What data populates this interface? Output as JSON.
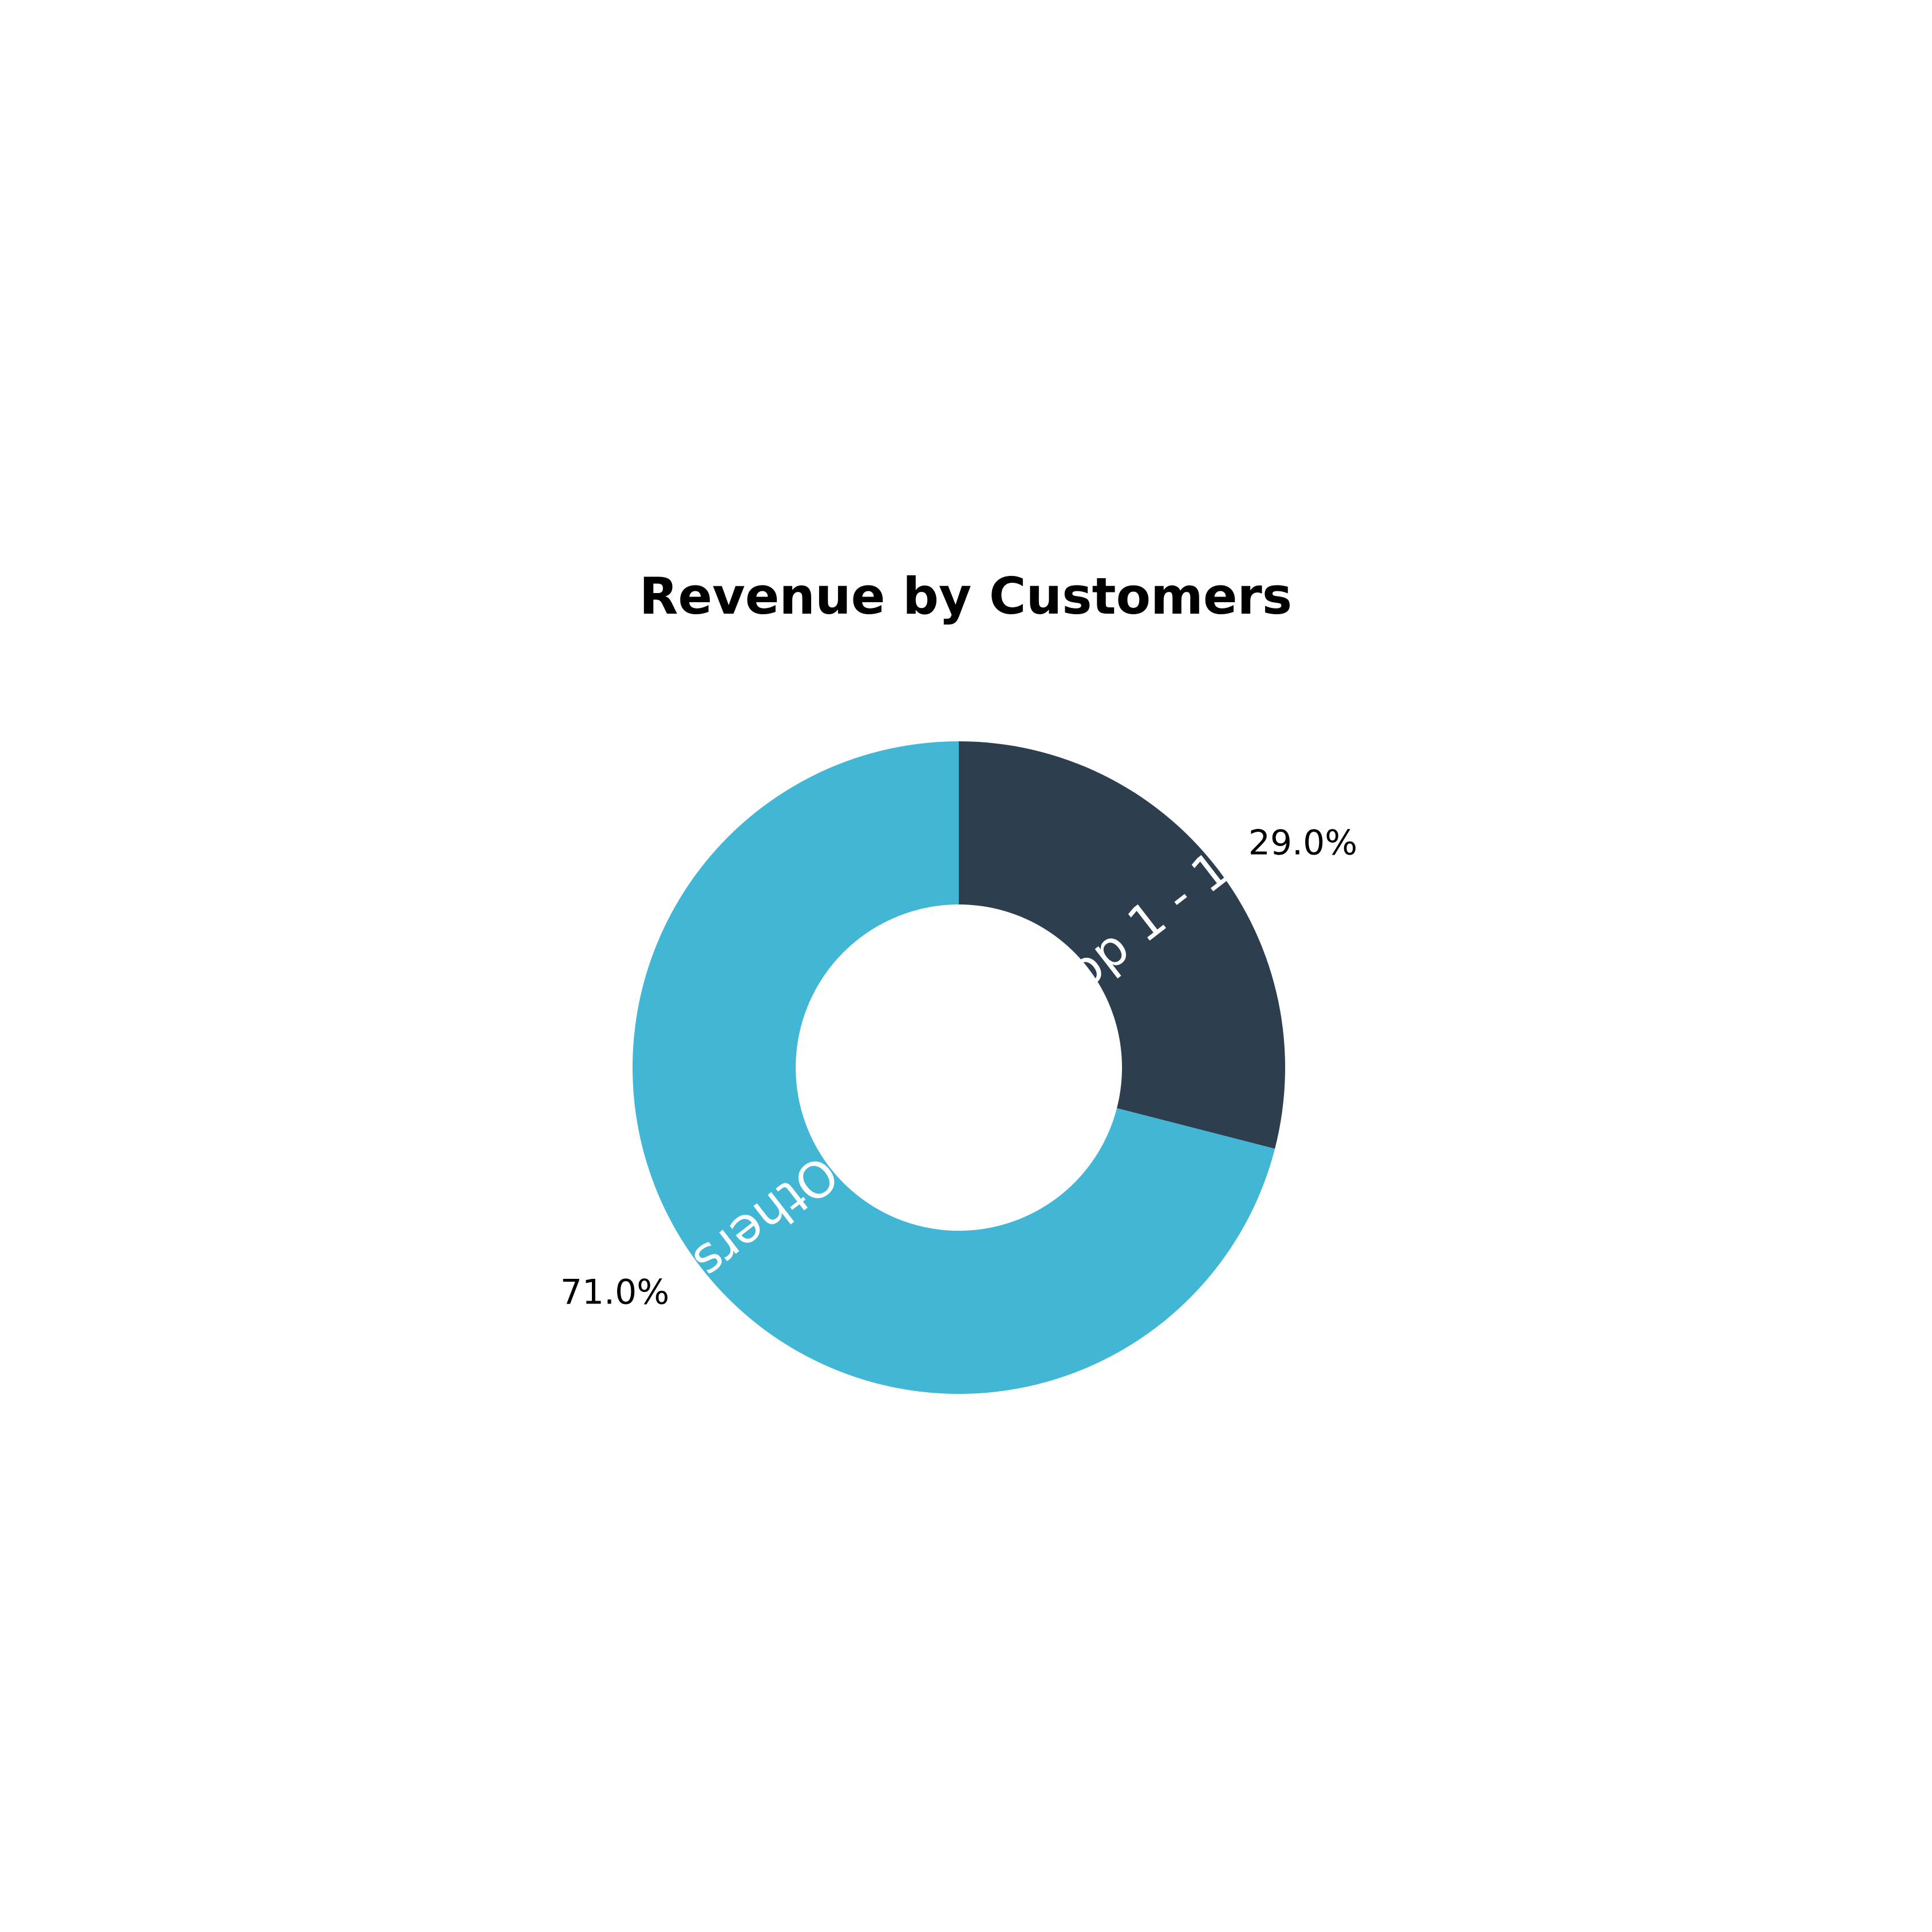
{
  "chart_data": {
    "type": "pie",
    "title": "Revenue by Customers",
    "donut": true,
    "start_angle_deg": 0,
    "direction": "clockwise",
    "slices": [
      {
        "label": "Top 1 - 10",
        "value": 29.0,
        "percent_label": "29.0%",
        "color": "#2d3e4e"
      },
      {
        "label": "Others",
        "value": 71.0,
        "percent_label": "71.0%",
        "color": "#42b7d5"
      }
    ],
    "legend": "none"
  }
}
